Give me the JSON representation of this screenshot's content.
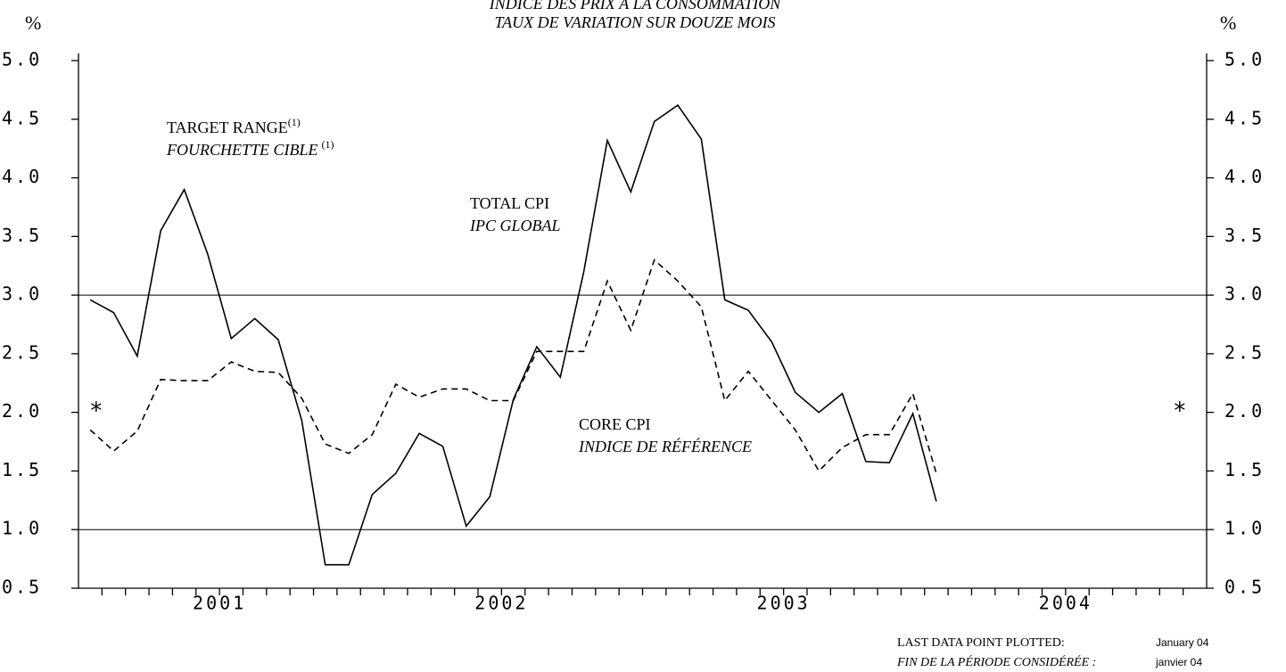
{
  "chart_data": {
    "type": "line",
    "title": "INDICE DES PRIX À LA CONSOMMATION",
    "subtitle": "TAUX DE VARIATION SUR DOUZE MOIS",
    "y_label": "%",
    "y2_label": "%",
    "categories": [
      null,
      null,
      null,
      null,
      null,
      null,
      "2001",
      null,
      null,
      null,
      null,
      null,
      null,
      null,
      null,
      null,
      null,
      null,
      "2002",
      null,
      null,
      null,
      null,
      null,
      null,
      null,
      null,
      null,
      null,
      null,
      "2003",
      null,
      null,
      null,
      null,
      null,
      null,
      null,
      null,
      null,
      null,
      null,
      "2004",
      null,
      null,
      null,
      null,
      null
    ],
    "series": [
      {
        "name": "TOTAL CPI",
        "name_fr": "IPC GLOBAL",
        "color": "#000000",
        "dash": false,
        "values": [
          2.96,
          2.85,
          2.48,
          3.55,
          3.9,
          3.35,
          2.63,
          2.8,
          2.62,
          1.93,
          0.7,
          0.7,
          1.3,
          1.48,
          1.82,
          1.71,
          1.03,
          1.28,
          2.11,
          2.56,
          2.3,
          3.2,
          4.32,
          3.88,
          4.48,
          4.62,
          4.33,
          2.96,
          2.87,
          2.6,
          2.17,
          2.0,
          2.16,
          1.58,
          1.57,
          1.99,
          1.24,
          null,
          null,
          null,
          null,
          null,
          null,
          null,
          null,
          null,
          null,
          null
        ]
      },
      {
        "name": "CORE CPI",
        "name_fr": "INDICE DE RÉFÉRENCE",
        "color": "#000000",
        "dash": true,
        "values": [
          1.85,
          1.67,
          1.84,
          2.28,
          2.27,
          2.27,
          2.43,
          2.35,
          2.34,
          2.12,
          1.73,
          1.65,
          1.81,
          2.24,
          2.13,
          2.2,
          2.2,
          2.1,
          2.1,
          2.52,
          2.52,
          2.52,
          3.12,
          2.7,
          3.3,
          3.12,
          2.9,
          2.1,
          2.35,
          2.1,
          1.85,
          1.5,
          1.7,
          1.81,
          1.81,
          2.16,
          1.48,
          null,
          null,
          null,
          null,
          null,
          null,
          null,
          null,
          null,
          null,
          null
        ]
      }
    ],
    "target_range": [
      1,
      3
    ],
    "target_label": "TARGET RANGE",
    "target_label_fr": "FOURCHETTE CIBLE",
    "note_marker": "(1)",
    "marker": "*",
    "ylim": [
      0.5,
      5
    ],
    "yticks": [
      0.5,
      {
        "value": 1,
        "label": "1.0"
      },
      1.5,
      {
        "value": 2,
        "label": "2.0"
      },
      2.5,
      {
        "value": 3,
        "label": "3.0"
      },
      3.5,
      {
        "value": 4,
        "label": "4.0"
      },
      4.5,
      {
        "value": 5,
        "label": "5.0"
      }
    ],
    "y2lim": [
      0.5,
      5
    ],
    "y2ticks": [
      0.5,
      {
        "value": 1,
        "label": "1.0"
      },
      1.5,
      {
        "value": 2,
        "label": "2.0"
      },
      2.5,
      {
        "value": 3,
        "label": "3.0"
      },
      3.5,
      {
        "value": 4,
        "label": "4.0"
      },
      4.5,
      {
        "value": 5,
        "label": "5.0"
      }
    ],
    "footer": {
      "label": "LAST DATA POINT PLOTTED:",
      "label_fr": "FIN DE LA PÉRIODE CONSIDÉRÉE :",
      "value": "January 04",
      "value_fr": "janvier 04"
    }
  }
}
